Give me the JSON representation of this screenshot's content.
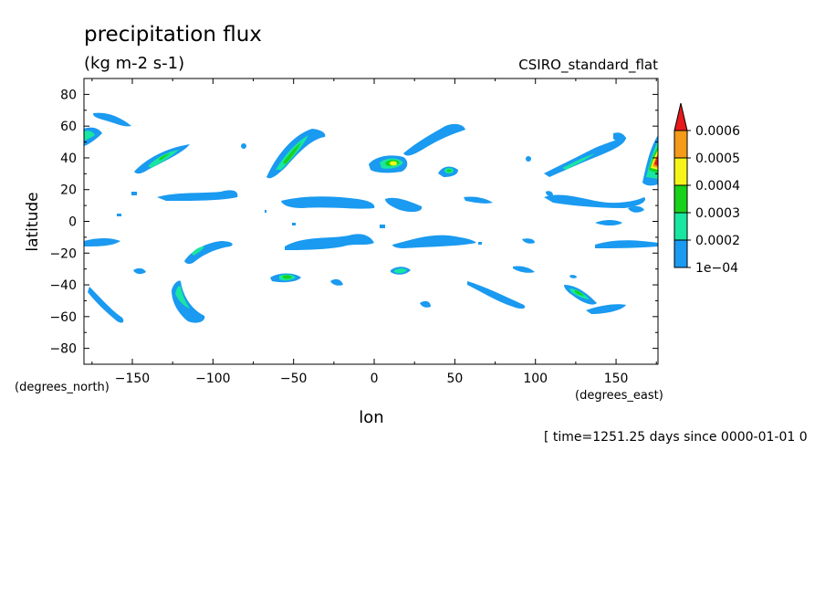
{
  "chart_data": {
    "type": "heatmap",
    "title": "precipitation flux",
    "subtitle": "(kg m-2 s-1)",
    "dataset_label": "CSIRO_standard_flat",
    "xlabel": "lon",
    "ylabel": "latitude",
    "x_units": "(degrees_east)",
    "y_units": "(degrees_north)",
    "footer": "[ time=1251.25 days since 0000-01-01 0",
    "xlim": [
      -180,
      176
    ],
    "ylim": [
      -90,
      90
    ],
    "x_ticks": [
      -150,
      -100,
      -50,
      0,
      50,
      100,
      150
    ],
    "x_tick_labels": [
      "−150",
      "−100",
      "−50",
      "0",
      "50",
      "100",
      "150"
    ],
    "y_ticks": [
      80,
      60,
      40,
      20,
      0,
      -20,
      -40,
      -60,
      -80
    ],
    "y_tick_labels": [
      "80",
      "60",
      "40",
      "20",
      "0",
      "−20",
      "−40",
      "−60",
      "−80"
    ],
    "grid": false,
    "colorbar": {
      "levels": [
        0.0001,
        0.0002,
        0.0003,
        0.0004,
        0.0005,
        0.0006
      ],
      "labels": [
        "1e−04",
        "0.0002",
        "0.0003",
        "0.0004",
        "0.0005",
        "0.0006"
      ],
      "colors": [
        "#1a9af0",
        "#19e6a0",
        "#19d21a",
        "#f5f51a",
        "#f59a19",
        "#e61a1a"
      ],
      "extend": "max"
    },
    "features": [
      {
        "name": "north-pacific-ne-band",
        "lon": -150,
        "lat": 62,
        "level": 1
      },
      {
        "name": "northwest-edge-band",
        "lon": -176,
        "lat": 52,
        "level": 2
      },
      {
        "name": "north-pacific-diagonal-band",
        "lon": -125,
        "lat": 39,
        "level": 2
      },
      {
        "name": "north-atlantic-diagonal-band",
        "lon": -50,
        "lat": 40,
        "level": 3
      },
      {
        "name": "europe-cell",
        "lon": 12,
        "lat": 36,
        "level": 4
      },
      {
        "name": "central-asia-band",
        "lon": 40,
        "lat": 49,
        "level": 1
      },
      {
        "name": "arabian-cell",
        "lon": 45,
        "lat": 31,
        "level": 3
      },
      {
        "name": "east-asia-band",
        "lon": 130,
        "lat": 40,
        "level": 2
      },
      {
        "name": "far-east-storm",
        "lon": 175,
        "lat": 40,
        "level": 6
      },
      {
        "name": "equatorial-band-1",
        "lon": -120,
        "lat": 15,
        "level": 1
      },
      {
        "name": "equatorial-band-2",
        "lon": -45,
        "lat": 10,
        "level": 1
      },
      {
        "name": "equatorial-band-3",
        "lon": 150,
        "lat": 10,
        "level": 1
      },
      {
        "name": "south-equatorial-band-1",
        "lon": -25,
        "lat": -15,
        "level": 1
      },
      {
        "name": "south-equatorial-band-2",
        "lon": 40,
        "lat": -12,
        "level": 1
      },
      {
        "name": "south-pacific-band",
        "lon": -120,
        "lat": -18,
        "level": 2
      },
      {
        "name": "south-atlantic-cell",
        "lon": -52,
        "lat": -35,
        "level": 3
      },
      {
        "name": "south-africa-cell",
        "lon": 18,
        "lat": -30,
        "level": 3
      },
      {
        "name": "southern-ocean-band-1",
        "lon": -160,
        "lat": -50,
        "level": 1
      },
      {
        "name": "southern-ocean-band-2",
        "lon": -118,
        "lat": -50,
        "level": 2
      },
      {
        "name": "southern-ocean-band-3",
        "lon": 80,
        "lat": -45,
        "level": 1
      },
      {
        "name": "southern-ocean-band-4",
        "lon": 130,
        "lat": -43,
        "level": 3
      }
    ]
  }
}
